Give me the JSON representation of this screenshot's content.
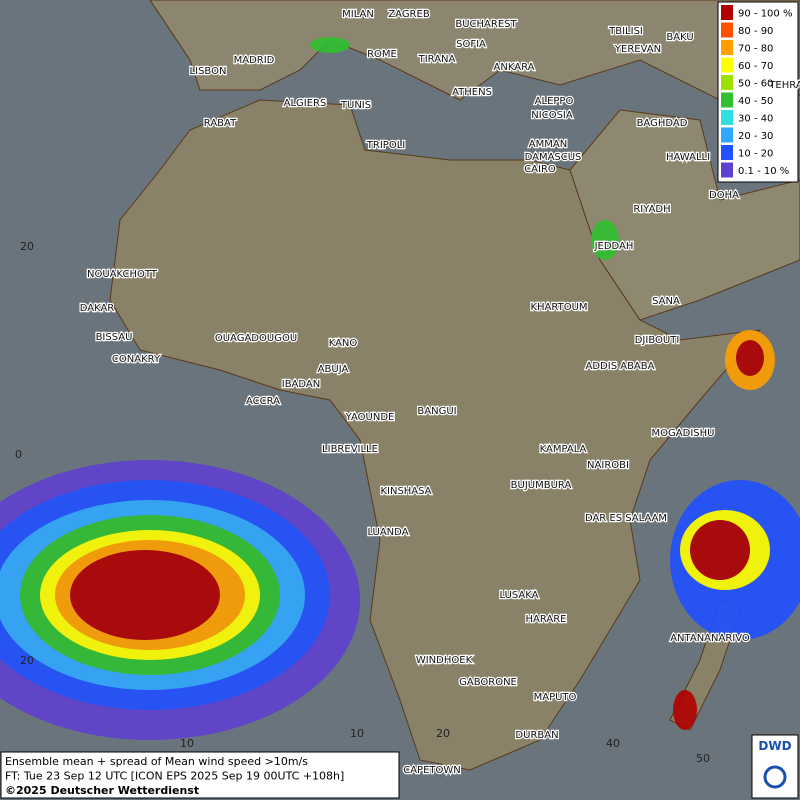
{
  "map": {
    "cities": [
      "MILAN",
      "ZAGREB",
      "BUCHAREST",
      "TBILISI",
      "BAKU",
      "MADRID",
      "ROME",
      "SOFIA",
      "YEREVAN",
      "LISBON",
      "TIRANA",
      "ANKARA",
      "TEHRA",
      "ALGIERS",
      "TUNIS",
      "ATHENS",
      "ALEPPO",
      "RABAT",
      "NICOSIA",
      "BAGHDAD",
      "DAMASCUS",
      "TRIPOLI",
      "AMMAN",
      "HAWALLI",
      "CAIRO",
      "DOHA",
      "RIYADH",
      "JEDDAH",
      "NOUAKCHOTT",
      "SANA",
      "DAKAR",
      "KHARTOUM",
      "BISSAU",
      "DJIBOUTI",
      "CONAKRY",
      "OUAGADOUGOU",
      "KANO",
      "ADDIS ABABA",
      "ABUJA",
      "IBADAN",
      "ACCRA",
      "YAOUNDE",
      "BANGUI",
      "MOGADISHU",
      "LIBREVILLE",
      "KAMPALA",
      "NAIROBI",
      "KINSHASA",
      "BUJUMBURA",
      "DAR ES SALAAM",
      "LUANDA",
      "LUSAKA",
      "HARARE",
      "ANTANANARIVO",
      "WINDHOEK",
      "GABORONE",
      "MAPUTO",
      "DURBAN",
      "CAPETOWN"
    ],
    "lat_labels": [
      "20",
      "0",
      "20"
    ],
    "lon_labels": [
      "10",
      "10",
      "20",
      "40",
      "50"
    ],
    "legend": [
      {
        "label": "90 - 100 %",
        "color": "#b00000"
      },
      {
        "label": "80 - 90",
        "color": "#ff5000"
      },
      {
        "label": "70 - 80",
        "color": "#ffa000"
      },
      {
        "label": "60 - 70",
        "color": "#ffff00"
      },
      {
        "label": "50 - 60",
        "color": "#a0e000"
      },
      {
        "label": "40 - 50",
        "color": "#30c030"
      },
      {
        "label": "30 - 40",
        "color": "#30e0e0"
      },
      {
        "label": "20 - 30",
        "color": "#30a8ff"
      },
      {
        "label": "10 - 20",
        "color": "#2050ff"
      },
      {
        "label": "0.1 - 10 %",
        "color": "#6040d0"
      }
    ],
    "caption": [
      "Ensemble mean + spread of Mean wind speed >10m/s",
      "FT: Tue 23 Sep 12 UTC [ICON EPS 2025 Sep 19 00UTC +108h]",
      "©2025 Deutscher Wetterdienst"
    ],
    "logo": "DWD"
  }
}
